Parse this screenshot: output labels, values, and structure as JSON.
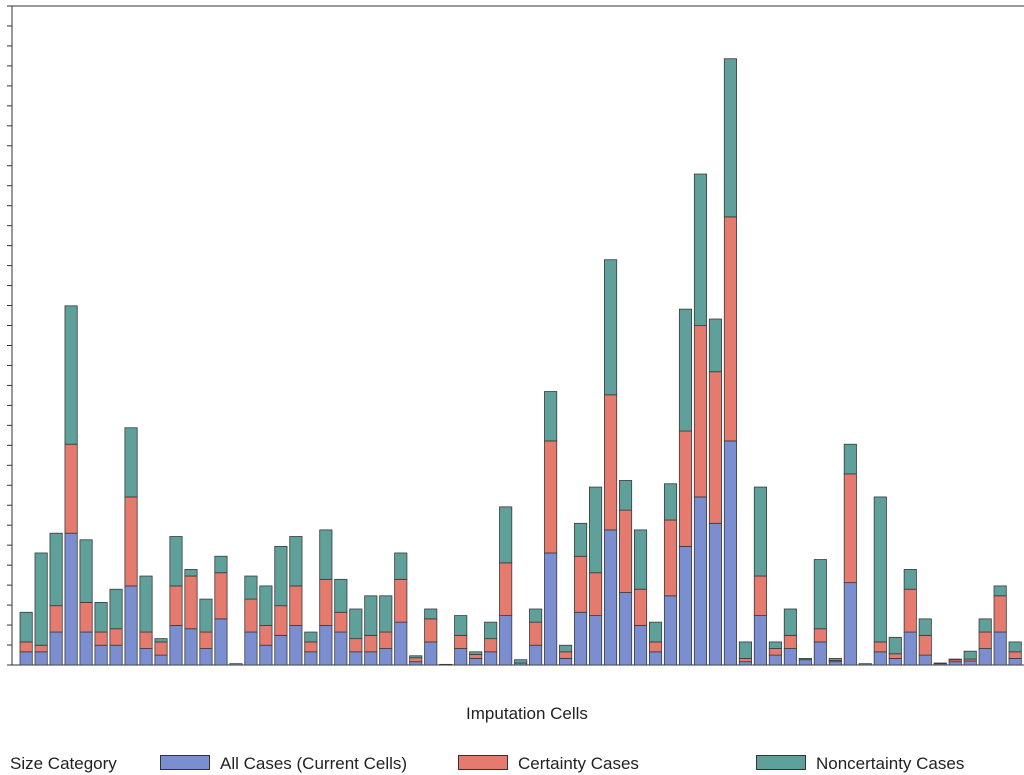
{
  "chart_data": {
    "type": "bar",
    "stacked": true,
    "title": "",
    "xlabel": "Imputation Cells",
    "ylabel": "",
    "ylim": [
      0,
      100
    ],
    "grid": false,
    "legend_placement": "bottom",
    "legend_title": "Size Category",
    "series": [
      {
        "name": "All Cases (Current Cells)",
        "color": "#7b8fd0",
        "values": [
          2,
          2,
          5,
          20,
          5,
          3,
          3,
          12,
          2.5,
          1.5,
          6,
          5.5,
          2.5,
          7,
          0.2,
          5,
          3,
          4.5,
          6,
          2,
          6,
          5,
          2,
          2,
          2.5,
          6.5,
          0.5,
          3.5,
          0.1,
          2.5,
          1,
          2,
          7.5,
          0.3,
          3,
          17,
          1,
          8,
          7.5,
          20.5,
          11,
          6,
          2,
          10.5,
          18,
          25.5,
          21.5,
          34,
          0.5,
          7.5,
          1.5,
          2.5,
          0.8,
          3.5,
          0.5,
          12.5,
          0,
          2,
          1,
          5,
          1.5,
          0.2,
          0.5,
          0.6,
          2.5,
          5,
          1
        ]
      },
      {
        "name": "Certainty Cases",
        "color": "#e47b6e",
        "values": [
          1.5,
          1,
          4,
          13.5,
          4.5,
          2,
          2.5,
          13.5,
          2.5,
          2,
          6,
          8,
          2.5,
          7,
          0,
          5,
          3,
          4.5,
          6,
          1.5,
          7,
          3,
          2,
          2.5,
          2.5,
          6.5,
          0.6,
          3.5,
          0,
          2,
          0.6,
          2,
          8,
          0,
          3.5,
          17,
          1,
          8.5,
          6.5,
          20.5,
          12.5,
          5.5,
          1.5,
          11.5,
          17.5,
          26,
          23,
          34,
          0.5,
          6,
          1,
          2,
          0,
          2,
          0.2,
          16.5,
          0,
          1.5,
          0.7,
          6.5,
          3,
          0.1,
          0.3,
          0.3,
          2.5,
          5.5,
          1
        ]
      },
      {
        "name": "Noncertainty Cases",
        "color": "#5fa09a",
        "values": [
          4.5,
          14,
          11,
          21,
          9.5,
          4.5,
          6,
          10.5,
          8.5,
          0.5,
          7.5,
          1,
          5,
          2.5,
          0,
          3.5,
          6,
          9,
          7.5,
          1.5,
          7.5,
          5,
          4.5,
          6,
          5.5,
          4,
          0.3,
          1.5,
          0,
          3,
          0.4,
          2.5,
          8.5,
          0.5,
          2,
          7.5,
          1,
          5,
          13,
          20.5,
          4.5,
          9,
          3,
          5.5,
          18.5,
          23,
          8,
          24,
          2.5,
          13.5,
          1,
          4,
          0.2,
          10.5,
          0.3,
          4.5,
          0.2,
          22,
          2.5,
          3,
          2.5,
          0,
          0.1,
          1.2,
          2,
          1.5,
          1.5
        ]
      }
    ]
  }
}
